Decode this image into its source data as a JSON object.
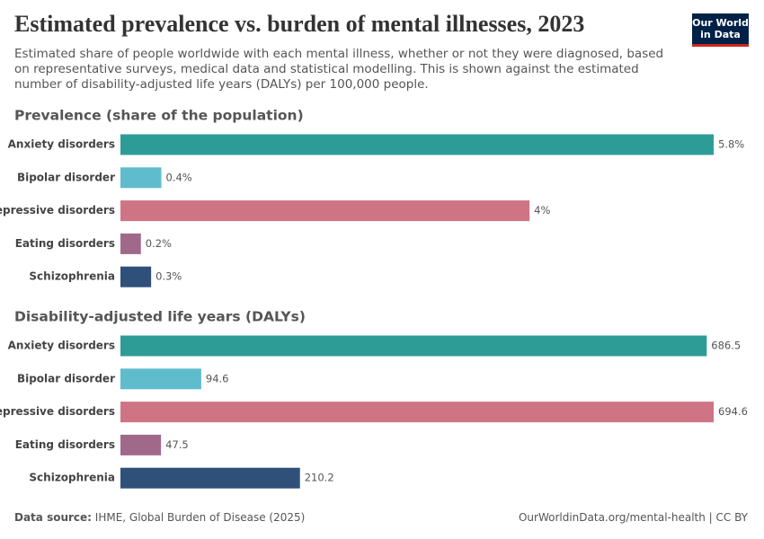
{
  "header": {
    "title": "Estimated prevalence vs. burden of mental illnesses, 2023",
    "subtitle": "Estimated share of people worldwide with each mental illness, whether or not they were diagnosed, based on representative surveys, medical data and statistical modelling. This is shown against the estimated number of disability-adjusted life years (DALYs) per 100,000 people.",
    "logo": [
      "Our World",
      "in Data"
    ]
  },
  "chart_data": [
    {
      "type": "bar",
      "title": "Prevalence (share of the population)",
      "categories": [
        "Anxiety disorders",
        "Bipolar disorder",
        "Depressive disorders",
        "Eating disorders",
        "Schizophrenia"
      ],
      "values": [
        5.8,
        0.4,
        4,
        0.2,
        0.3
      ],
      "value_labels": [
        "5.8%",
        "0.4%",
        "4%",
        "0.2%",
        "0.3%"
      ],
      "colors": [
        "#2e9c96",
        "#5fbccc",
        "#cf7485",
        "#a0698a",
        "#2f5079"
      ]
    },
    {
      "type": "bar",
      "title": "Disability-adjusted life years (DALYs)",
      "categories": [
        "Anxiety disorders",
        "Bipolar disorder",
        "Depressive disorders",
        "Eating disorders",
        "Schizophrenia"
      ],
      "values": [
        686.5,
        94.6,
        694.6,
        47.5,
        210.2
      ],
      "colors": [
        "#2e9c96",
        "#5fbccc",
        "#cf7485",
        "#a0698a",
        "#2f5079"
      ]
    }
  ],
  "footer": {
    "source_label": "Data source:",
    "source": "IHME, Global Burden of Disease (2025)",
    "url": "OurWorldinData.org/mental-health | CC BY"
  }
}
